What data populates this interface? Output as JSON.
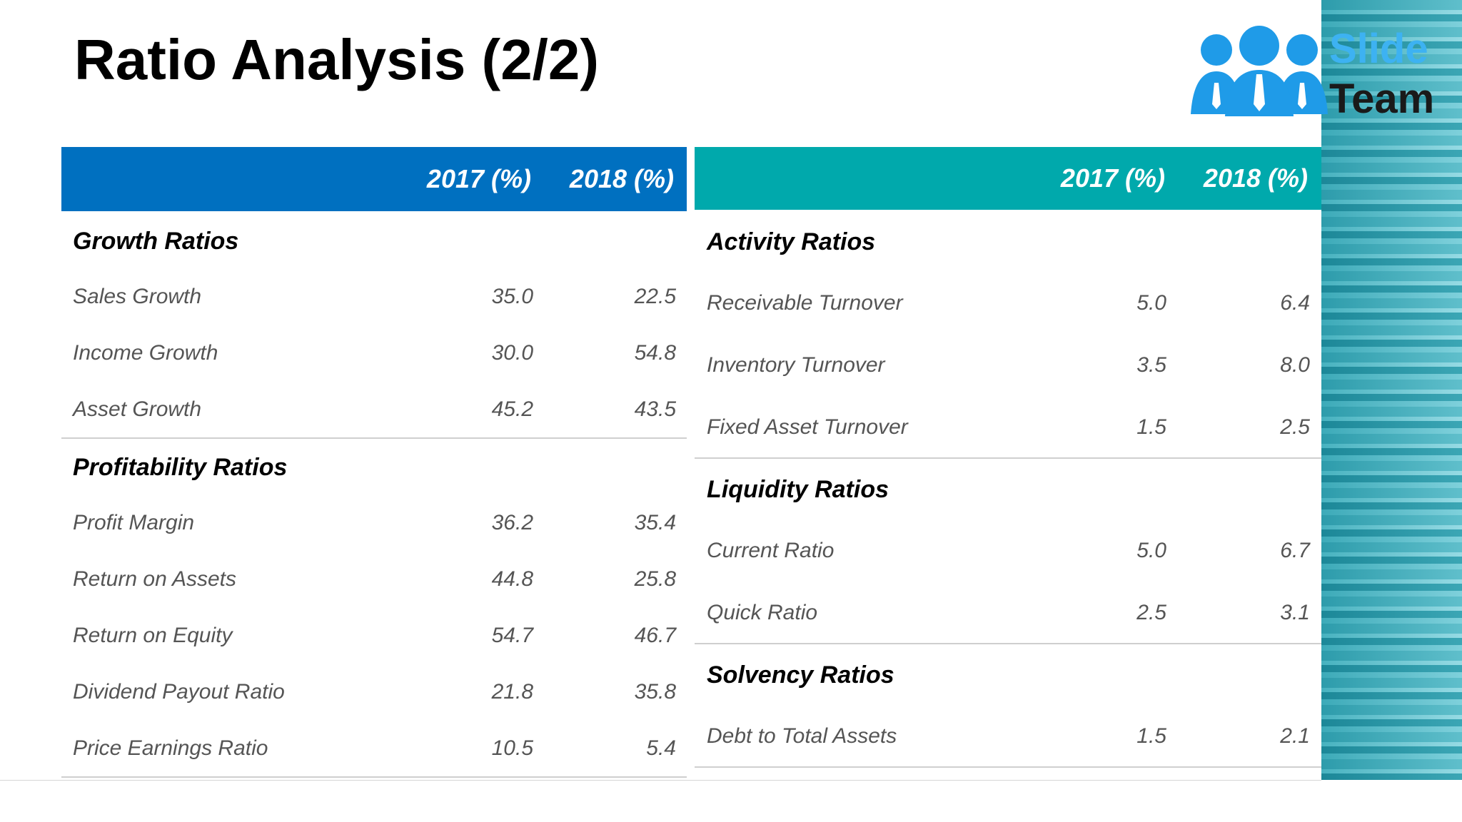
{
  "header": {
    "title": "Ratio Analysis (2/2)"
  },
  "logo": {
    "line1": "Slide",
    "line2": "Team"
  },
  "tables": [
    {
      "columns": [
        "2017 (%)",
        "2018 (%)"
      ],
      "sections": [
        {
          "title": "Growth Ratios",
          "rows": [
            [
              "Sales Growth",
              "35.0",
              "22.5"
            ],
            [
              "Income Growth",
              "30.0",
              "54.8"
            ],
            [
              "Asset Growth",
              "45.2",
              "43.5"
            ]
          ]
        },
        {
          "title": "Profitability Ratios",
          "rows": [
            [
              "Profit Margin",
              "36.2",
              "35.4"
            ],
            [
              "Return on Assets",
              "44.8",
              "25.8"
            ],
            [
              "Return on Equity",
              "54.7",
              "46.7"
            ],
            [
              "Dividend Payout Ratio",
              "21.8",
              "35.8"
            ],
            [
              "Price Earnings Ratio",
              "10.5",
              "5.4"
            ]
          ]
        }
      ]
    },
    {
      "columns": [
        "2017 (%)",
        "2018 (%)"
      ],
      "sections": [
        {
          "title": "Activity Ratios",
          "rows": [
            [
              "Receivable Turnover",
              "5.0",
              "6.4"
            ],
            [
              "Inventory Turnover",
              "3.5",
              "8.0"
            ],
            [
              "Fixed Asset Turnover",
              "1.5",
              "2.5"
            ]
          ]
        },
        {
          "title": "Liquidity Ratios",
          "rows": [
            [
              "Current Ratio",
              "5.0",
              "6.7"
            ],
            [
              "Quick Ratio",
              "2.5",
              "3.1"
            ]
          ]
        },
        {
          "title": "Solvency Ratios",
          "rows": [
            [
              "Debt to Total Assets",
              "1.5",
              "2.1"
            ]
          ]
        }
      ]
    }
  ]
}
